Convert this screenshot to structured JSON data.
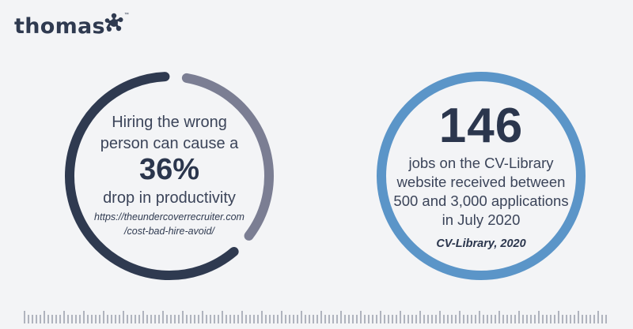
{
  "logo": {
    "text": "thomas",
    "trademark": "™",
    "mark_color": "#2f3a50"
  },
  "left_stat": {
    "line1": "Hiring the wrong",
    "line2": "person can cause a",
    "value": "36%",
    "line3": "drop in productivity",
    "url_line1": "https://theundercoverrecruiter.com",
    "url_line2": "/cost-bad-hire-avoid/",
    "ring_fraction": 0.36,
    "colors": {
      "ring_main": "#2f3a50",
      "ring_accent": "#7b7e93"
    }
  },
  "right_stat": {
    "value": "146",
    "line1": "jobs on the CV-Library",
    "line2": "website received between",
    "line3": "500 and 3,000 applications",
    "line4": "in July 2020",
    "source": "CV-Library, 2020",
    "colors": {
      "ring": "#5b95c8"
    }
  },
  "colors": {
    "background": "#f3f4f6",
    "text_dark": "#2f3a50"
  }
}
